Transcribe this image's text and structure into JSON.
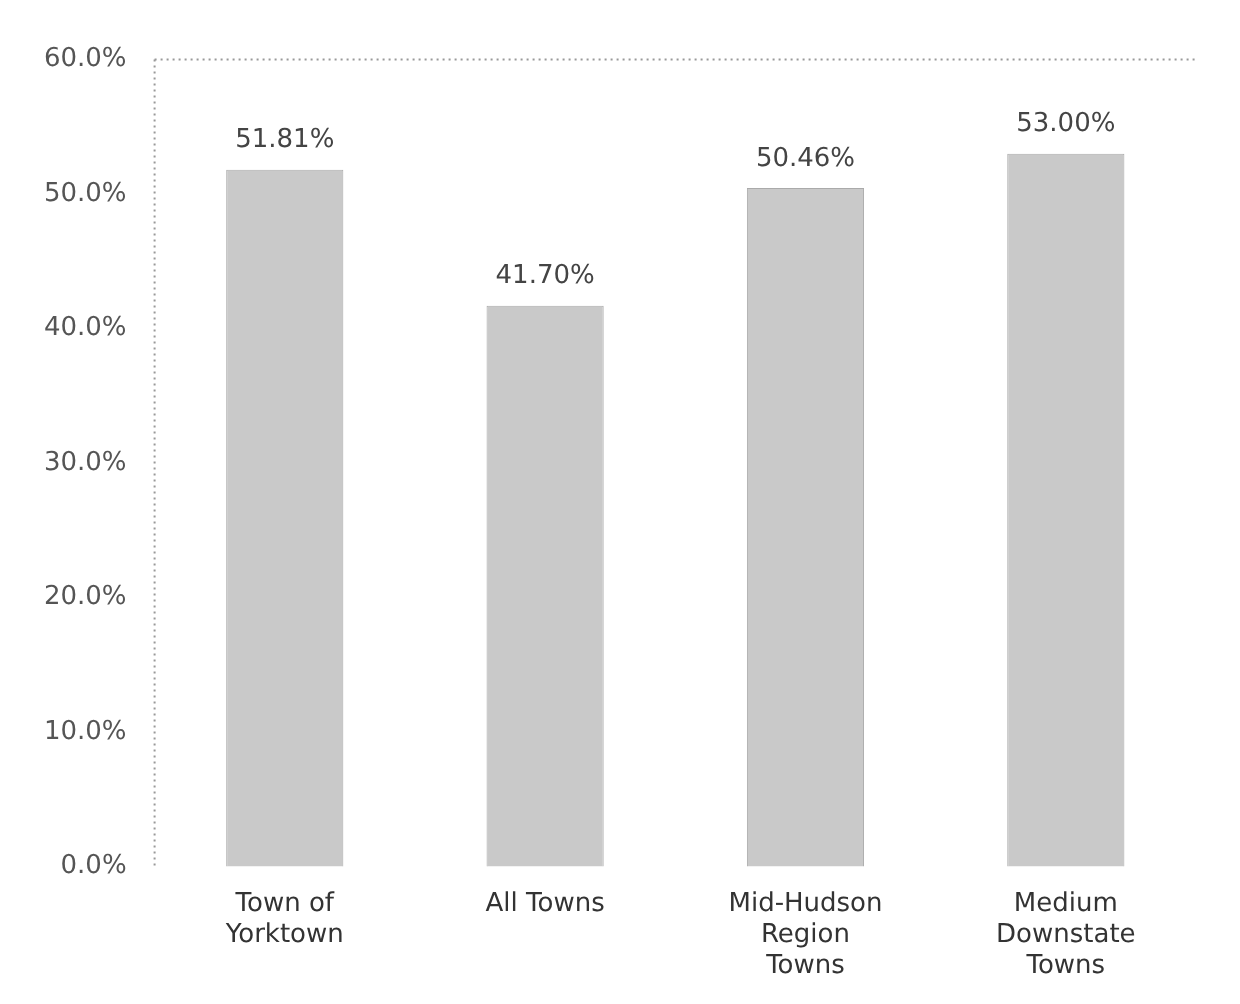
{
  "chart_data": {
    "type": "bar",
    "categories": [
      "Town of Yorktown",
      "All Towns",
      "Mid-Hudson Region Towns",
      "Medium Downstate Towns"
    ],
    "values": [
      51.81,
      41.7,
      50.46,
      53.0
    ],
    "value_labels": [
      "51.81%",
      "41.70%",
      "50.46%",
      "53.00%"
    ],
    "color": "#c9c9c9",
    "ylim": [
      0,
      60
    ],
    "yticks": [
      {
        "value": 0,
        "label": "0.0%"
      },
      {
        "value": 10,
        "label": "10.0%"
      },
      {
        "value": 20,
        "label": "20.0%"
      },
      {
        "value": 30,
        "label": "30.0%"
      },
      {
        "value": 40,
        "label": "40.0%"
      },
      {
        "value": 50,
        "label": "50.0%"
      },
      {
        "value": 60,
        "label": "60.0%"
      }
    ],
    "grid": false
  }
}
